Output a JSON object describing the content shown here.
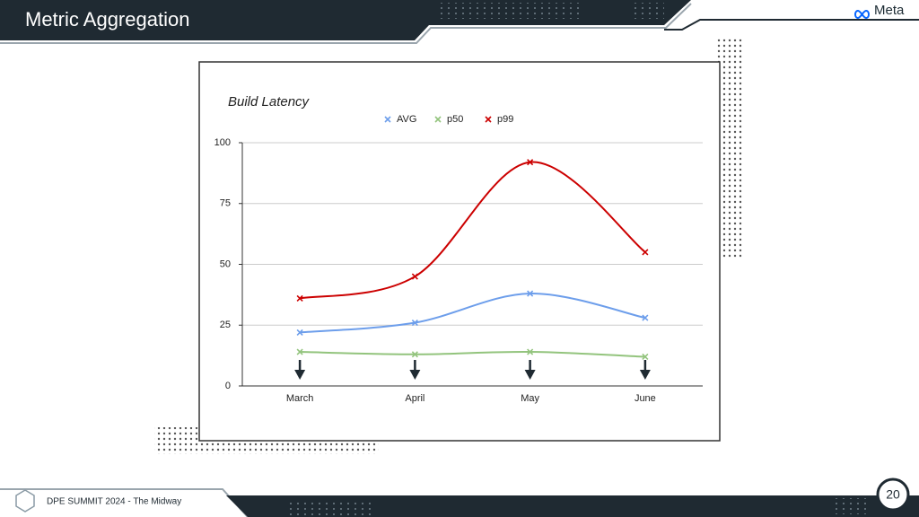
{
  "header": {
    "title": "Metric Aggregation",
    "logo": "Meta"
  },
  "footer": {
    "event": "DPE SUMMIT 2024 - The Midway",
    "page": 20
  },
  "chart_data": {
    "type": "line",
    "title": "Build Latency",
    "categories": [
      "March",
      "April",
      "May",
      "June"
    ],
    "series": [
      {
        "name": "AVG",
        "color": "#6d9eeb",
        "values": [
          22,
          26,
          38,
          28
        ]
      },
      {
        "name": "p50",
        "color": "#93c47d",
        "values": [
          14,
          13,
          14,
          12
        ]
      },
      {
        "name": "p99",
        "color": "#cc0000",
        "values": [
          36,
          45,
          92,
          55
        ]
      }
    ],
    "ylim": [
      0,
      100
    ],
    "yticks": [
      0,
      25,
      50,
      75,
      100
    ],
    "grid": true,
    "legend": "top",
    "smooth": true
  }
}
